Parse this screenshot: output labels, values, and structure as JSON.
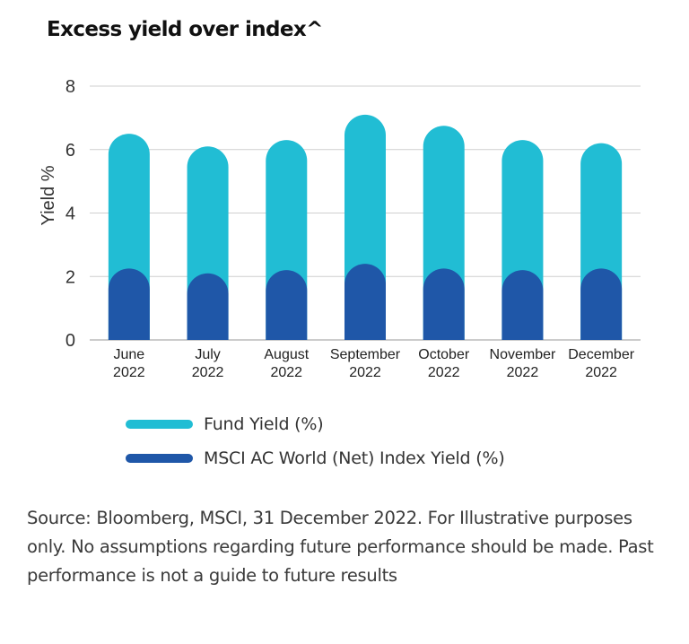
{
  "chart_data": {
    "type": "bar",
    "title": "Excess yield over index^",
    "ylabel": "Yield %",
    "xlabel": "",
    "ylim": [
      0,
      8
    ],
    "yticks": [
      0,
      2,
      4,
      6,
      8
    ],
    "grid": true,
    "legend_position": "bottom",
    "categories": [
      [
        "June",
        "2022"
      ],
      [
        "July",
        "2022"
      ],
      [
        "August",
        "2022"
      ],
      [
        "September",
        "2022"
      ],
      [
        "October",
        "2022"
      ],
      [
        "November",
        "2022"
      ],
      [
        "December",
        "2022"
      ]
    ],
    "series": [
      {
        "name": "Fund Yield (%)",
        "color": "#21bdd4",
        "values": [
          6.5,
          6.1,
          6.3,
          7.1,
          6.75,
          6.3,
          6.2
        ]
      },
      {
        "name": "MSCI AC World (Net) Index Yield (%)",
        "color": "#1f57a8",
        "values": [
          2.25,
          2.1,
          2.2,
          2.4,
          2.25,
          2.2,
          2.25
        ]
      }
    ]
  },
  "note": "Source: Bloomberg, MSCI, 31 December 2022. For Illustrative purposes only. No assumptions regarding future performance should be made. Past performance is not a guide to future results"
}
